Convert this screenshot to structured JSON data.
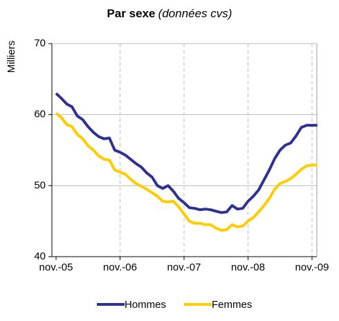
{
  "chart_data": {
    "type": "line",
    "title": "Par sexe",
    "subtitle": "(données cvs)",
    "y_label": "Milliers",
    "categories": [
      "nov.-05",
      null,
      null,
      null,
      null,
      null,
      null,
      null,
      null,
      null,
      null,
      null,
      "nov.-06",
      null,
      null,
      null,
      null,
      null,
      null,
      null,
      null,
      null,
      null,
      null,
      "nov.-07",
      null,
      null,
      null,
      null,
      null,
      null,
      null,
      null,
      null,
      null,
      null,
      "nov.-08",
      null,
      null,
      null,
      null,
      null,
      null,
      null,
      null,
      null,
      null,
      null,
      "nov.-09",
      null
    ],
    "series": [
      {
        "name": "Hommes",
        "color": "#2e3192",
        "values": [
          63.0,
          62.3,
          61.5,
          61.1,
          59.8,
          59.3,
          58.3,
          57.5,
          56.9,
          56.6,
          56.7,
          55.0,
          54.7,
          54.3,
          53.7,
          53.1,
          52.6,
          51.8,
          51.2,
          50.0,
          49.6,
          50.0,
          49.2,
          48.2,
          47.6,
          46.9,
          46.8,
          46.6,
          46.7,
          46.6,
          46.4,
          46.2,
          46.3,
          47.2,
          46.7,
          46.8,
          47.8,
          48.5,
          49.4,
          50.8,
          52.2,
          53.8,
          55.0,
          55.7,
          56.0,
          57.0,
          58.2,
          58.5,
          58.5,
          58.5
        ]
      },
      {
        "name": "Femmes",
        "color": "#ffcc00",
        "values": [
          60.2,
          59.6,
          58.6,
          58.3,
          57.2,
          56.6,
          55.6,
          55.0,
          54.2,
          53.7,
          53.6,
          52.2,
          51.9,
          51.6,
          50.9,
          50.3,
          49.9,
          49.5,
          49.0,
          48.5,
          47.8,
          47.7,
          47.8,
          47.0,
          46.0,
          45.0,
          44.7,
          44.7,
          44.5,
          44.5,
          44.0,
          43.7,
          43.8,
          44.5,
          44.2,
          44.3,
          45.0,
          45.5,
          46.3,
          47.2,
          48.2,
          49.5,
          50.3,
          50.6,
          51.0,
          51.6,
          52.3,
          52.8,
          52.9,
          52.9
        ]
      }
    ],
    "ylim": [
      40,
      70
    ],
    "yticks": [
      40,
      50,
      60,
      70
    ],
    "grid": true,
    "legend": "bottom"
  }
}
